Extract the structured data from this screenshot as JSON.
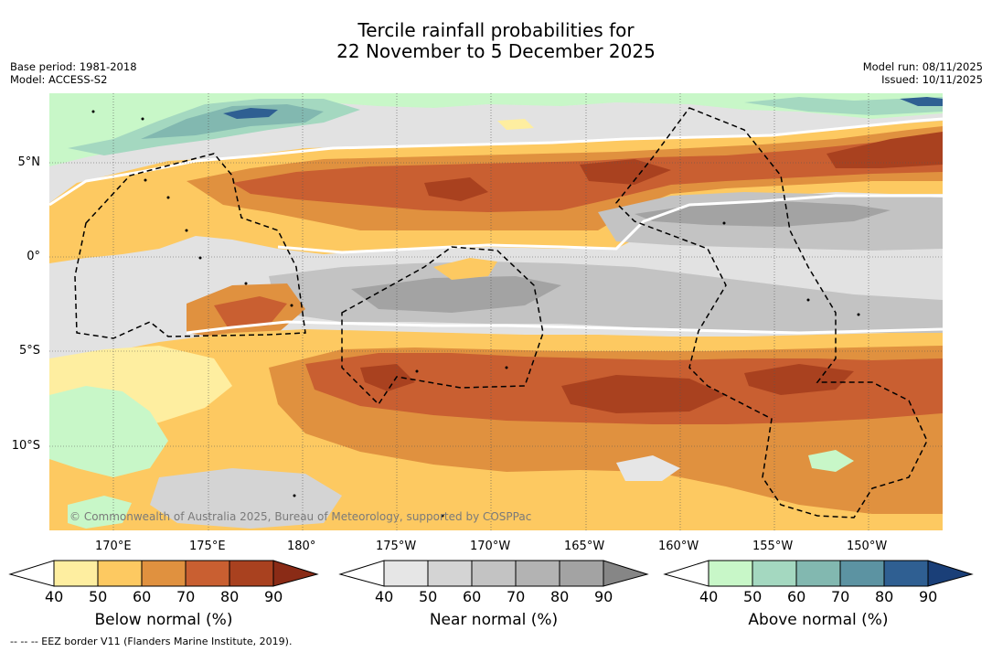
{
  "title": {
    "line1": "Tercile rainfall probabilities for",
    "line2": "22 November to 5 December 2025"
  },
  "meta_left": {
    "base_period": "Base period: 1981-2018",
    "model": "Model: ACCESS-S2"
  },
  "meta_right": {
    "model_run": "Model run: 08/11/2025",
    "issued": "Issued: 10/11/2025"
  },
  "map": {
    "latitude_labels": [
      "5°N",
      "0°",
      "5°S",
      "10°S"
    ],
    "longitude_labels": [
      "170°E",
      "175°E",
      "180°",
      "175°W",
      "170°W",
      "165°W",
      "160°W",
      "155°W",
      "150°W"
    ],
    "copyright": "© Commonwealth of Australia 2025, Bureau of Meteorology, supported by COSPPac"
  },
  "colorbars": [
    {
      "name": "below-normal",
      "label": "Below normal (%)",
      "ticks": [
        "40",
        "50",
        "60",
        "70",
        "80",
        "90"
      ],
      "colors": [
        "#ffffff",
        "#feeea0",
        "#fdc961",
        "#e0913f",
        "#c95f31",
        "#a9411f",
        "#8a2b16"
      ]
    },
    {
      "name": "near-normal",
      "label": "Near normal (%)",
      "ticks": [
        "40",
        "50",
        "60",
        "70",
        "80",
        "90"
      ],
      "colors": [
        "#ffffff",
        "#e6e6e6",
        "#d4d4d4",
        "#c3c3c3",
        "#b3b3b3",
        "#a3a3a3",
        "#868686"
      ]
    },
    {
      "name": "above-normal",
      "label": "Above normal (%)",
      "ticks": [
        "40",
        "50",
        "60",
        "70",
        "80",
        "90"
      ],
      "colors": [
        "#ffffff",
        "#c8f7c8",
        "#a4d8c0",
        "#82b8b0",
        "#5c93a2",
        "#2f5f92",
        "#1a3f78"
      ]
    }
  ],
  "footer": "--  --  -- EEZ border V11 (Flanders Marine Institute, 2019)."
}
